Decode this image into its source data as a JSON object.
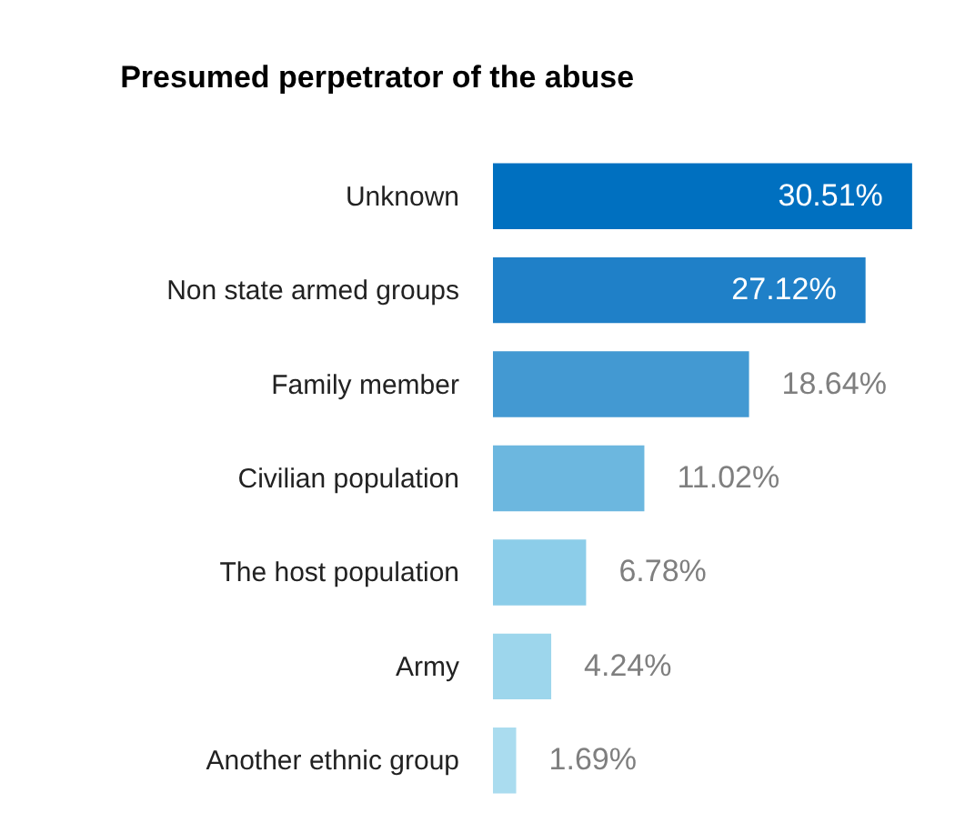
{
  "chart_data": {
    "type": "bar",
    "orientation": "horizontal",
    "title": "Presumed perpetrator of the abuse",
    "categories": [
      "Unknown",
      "Non state armed groups",
      "Family member",
      "Civilian population",
      "The host population",
      "Army",
      "Another ethnic group"
    ],
    "values": [
      30.51,
      27.12,
      18.64,
      11.02,
      6.78,
      4.24,
      1.69
    ],
    "value_labels": [
      "30.51%",
      "27.12%",
      "18.64%",
      "11.02%",
      "6.78%",
      "4.24%",
      "1.69%"
    ],
    "colors": [
      "#0070c0",
      "#1f80c8",
      "#4399d2",
      "#6cb7df",
      "#8ccde9",
      "#9dd6ec",
      "#aadcef"
    ]
  }
}
